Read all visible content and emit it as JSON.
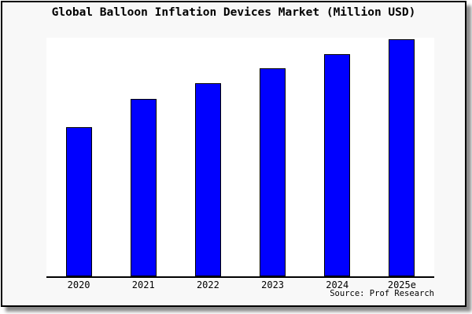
{
  "chart_data": {
    "type": "bar",
    "title": "Global Balloon Inflation Devices Market (Million USD)",
    "categories": [
      "2020",
      "2021",
      "2022",
      "2023",
      "2024",
      "2025e"
    ],
    "values": [
      62.9,
      74.8,
      81.5,
      87.7,
      93.7,
      100
    ],
    "value_scale": "relative units, tallest bar (2025e) = 100; chart shows no y-axis tick labels",
    "xlabel": "",
    "ylabel": "",
    "ylim": [
      0,
      100.7
    ],
    "grid": false,
    "legend": false,
    "bar_color": "#0000ff",
    "bar_edge_color": "#000000"
  },
  "source": "Source: Prof Research",
  "colors": {
    "figure_bg": "#f8f8f8",
    "plot_bg": "#ffffff",
    "axis": "#000000",
    "figure_border": "#000000",
    "shadow": "#8a8a8a",
    "bar_fill": "#0000ff",
    "bar_border": "#000000"
  }
}
